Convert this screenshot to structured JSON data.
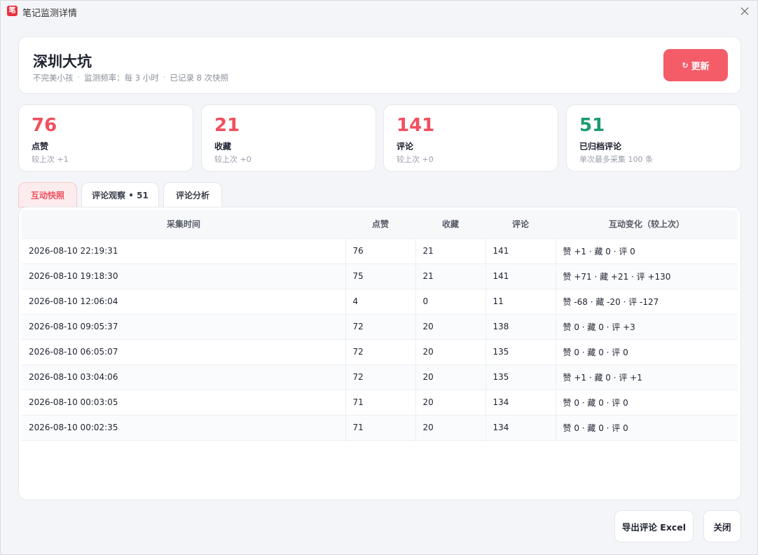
{
  "window": {
    "title": "笔记监测详情",
    "app_icon_glyph": "笔"
  },
  "header": {
    "title": "深圳大坑",
    "author": "不完美小孩",
    "frequency": "监测频率：每 3 小时",
    "records": "已记录 8 次快照",
    "refresh_label": "更新"
  },
  "stats": [
    {
      "value": "76",
      "label": "点赞",
      "sub": "较上次 +1"
    },
    {
      "value": "21",
      "label": "收藏",
      "sub": "较上次 +0"
    },
    {
      "value": "141",
      "label": "评论",
      "sub": "较上次 +0"
    },
    {
      "value": "51",
      "label": "已归档评论",
      "sub": "单次最多采集 100 条"
    }
  ],
  "tabs": [
    {
      "label": "互动快照"
    },
    {
      "label": "评论观察 • 51"
    },
    {
      "label": "评论分析"
    }
  ],
  "table": {
    "headers": [
      "采集时间",
      "点赞",
      "收藏",
      "评论",
      "互动变化（较上次）"
    ],
    "rows": [
      [
        "2026-08-10 22:19:31",
        "76",
        "21",
        "141",
        "赞 +1 · 藏 0 · 评 0"
      ],
      [
        "2026-08-10 19:18:30",
        "75",
        "21",
        "141",
        "赞 +71 · 藏 +21 · 评 +130"
      ],
      [
        "2026-08-10 12:06:04",
        "4",
        "0",
        "11",
        "赞 -68 · 藏 -20 · 评 -127"
      ],
      [
        "2026-08-10 09:05:37",
        "72",
        "20",
        "138",
        "赞 0 · 藏 0 · 评 +3"
      ],
      [
        "2026-08-10 06:05:07",
        "72",
        "20",
        "135",
        "赞 0 · 藏 0 · 评 0"
      ],
      [
        "2026-08-10 03:04:06",
        "72",
        "20",
        "135",
        "赞 +1 · 藏 0 · 评 +1"
      ],
      [
        "2026-08-10 00:03:05",
        "71",
        "20",
        "134",
        "赞 0 · 藏 0 · 评 0"
      ],
      [
        "2026-08-10 00:02:35",
        "71",
        "20",
        "134",
        "赞 0 · 藏 0 · 评 0"
      ]
    ]
  },
  "footer": {
    "export_label": "导出评论 Excel",
    "close_label": "关闭"
  },
  "colors": {
    "accent": "#f45c68",
    "accent_text": "#f0505e",
    "green": "#1d9b6c"
  },
  "icons": {
    "refresh": "refresh-icon",
    "close": "close-icon",
    "app": "app-logo-icon"
  }
}
